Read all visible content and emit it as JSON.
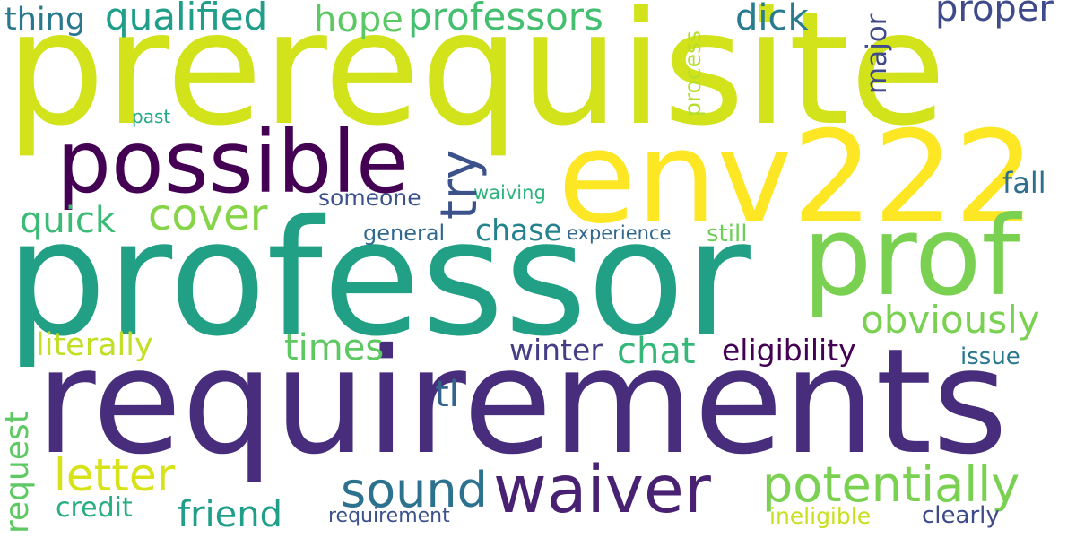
{
  "words": [
    {
      "id": "prerequisite",
      "text": "prerequisite",
      "color": "#d2e21b"
    },
    {
      "id": "professor",
      "text": "professor",
      "color": "#21a086"
    },
    {
      "id": "requirements",
      "text": "requirements",
      "color": "#472d7b"
    },
    {
      "id": "env222",
      "text": "env222",
      "color": "#fde725"
    },
    {
      "id": "prof",
      "text": "prof",
      "color": "#7ad151"
    },
    {
      "id": "possible",
      "text": "possible",
      "color": "#440154"
    },
    {
      "id": "waiver",
      "text": "waiver",
      "color": "#482173"
    },
    {
      "id": "potentially",
      "text": "potentially",
      "color": "#7ad151"
    },
    {
      "id": "sound",
      "text": "sound",
      "color": "#2c728e"
    },
    {
      "id": "letter",
      "text": "letter",
      "color": "#d8e219"
    },
    {
      "id": "cover",
      "text": "cover",
      "color": "#86d549"
    },
    {
      "id": "professors",
      "text": "professors",
      "color": "#44bf70"
    },
    {
      "id": "qualified",
      "text": "qualified",
      "color": "#1f9e89"
    },
    {
      "id": "obviously",
      "text": "obviously",
      "color": "#7ad151"
    },
    {
      "id": "friend",
      "text": "friend",
      "color": "#1f9e89"
    },
    {
      "id": "hope",
      "text": "hope",
      "color": "#5cc863"
    },
    {
      "id": "quick",
      "text": "quick",
      "color": "#3bbb75"
    },
    {
      "id": "times",
      "text": "times",
      "color": "#5ec962"
    },
    {
      "id": "chat",
      "text": "chat",
      "color": "#35b779"
    },
    {
      "id": "dick",
      "text": "dick",
      "color": "#287c8e"
    },
    {
      "id": "proper",
      "text": "proper",
      "color": "#3e4a89"
    },
    {
      "id": "literally",
      "text": "literally",
      "color": "#c2df23"
    },
    {
      "id": "thing",
      "text": "thing",
      "color": "#2a788e"
    },
    {
      "id": "chase",
      "text": "chase",
      "color": "#26828e"
    },
    {
      "id": "winter",
      "text": "winter",
      "color": "#433e85"
    },
    {
      "id": "eligibility",
      "text": "eligibility",
      "color": "#440154"
    },
    {
      "id": "fall",
      "text": "fall",
      "color": "#2d708e"
    },
    {
      "id": "tl",
      "text": "tl",
      "color": "#32648e"
    },
    {
      "id": "credit",
      "text": "credit",
      "color": "#28ae80"
    },
    {
      "id": "someone",
      "text": "someone",
      "color": "#3b528b"
    },
    {
      "id": "issue",
      "text": "issue",
      "color": "#2a788e"
    },
    {
      "id": "still",
      "text": "still",
      "color": "#6ece58"
    },
    {
      "id": "clearly",
      "text": "clearly",
      "color": "#3e4a89"
    },
    {
      "id": "ineligible",
      "text": "ineligible",
      "color": "#c8e020"
    },
    {
      "id": "general",
      "text": "general",
      "color": "#31688e"
    },
    {
      "id": "requirement",
      "text": "requirement",
      "color": "#3b528b"
    },
    {
      "id": "experience",
      "text": "experience",
      "color": "#31688e"
    },
    {
      "id": "waiving",
      "text": "waiving",
      "color": "#2db27d"
    },
    {
      "id": "past",
      "text": "past",
      "color": "#21a685"
    },
    {
      "id": "try",
      "text": "try",
      "color": "#3b528b"
    },
    {
      "id": "process",
      "text": "process",
      "color": "#b5de2b"
    },
    {
      "id": "major",
      "text": "major",
      "color": "#3e4a89"
    },
    {
      "id": "request",
      "text": "request",
      "color": "#5ec962"
    }
  ]
}
